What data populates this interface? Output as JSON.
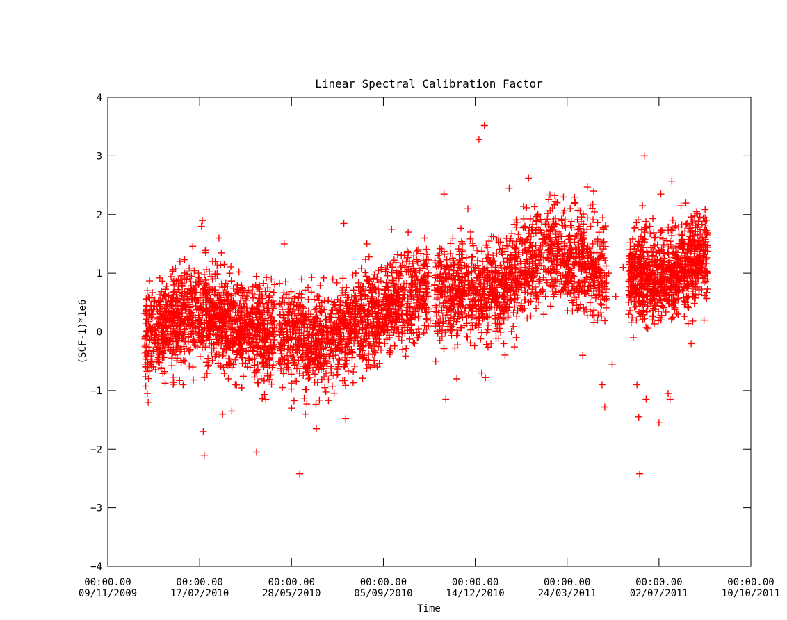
{
  "chart_data": {
    "type": "scatter",
    "title": "Linear Spectral Calibration Factor",
    "xlabel": "Time",
    "ylabel": "(SCF-1)*1e6",
    "ylim": [
      -4,
      4
    ],
    "xlim": [
      "2009-11-09",
      "2011-10-10"
    ],
    "yticks": [
      -4,
      -3,
      -2,
      -1,
      0,
      1,
      2,
      3,
      4
    ],
    "xticks": [
      {
        "date": "2009-11-09",
        "time": "00:00.00",
        "label": "09/11/2009"
      },
      {
        "date": "2010-02-17",
        "time": "00:00.00",
        "label": "17/02/2010"
      },
      {
        "date": "2010-05-28",
        "time": "00:00.00",
        "label": "28/05/2010"
      },
      {
        "date": "2010-09-05",
        "time": "00:00.00",
        "label": "05/09/2010"
      },
      {
        "date": "2010-12-14",
        "time": "00:00.00",
        "label": "14/12/2010"
      },
      {
        "date": "2011-03-24",
        "time": "00:00.00",
        "label": "24/03/2011"
      },
      {
        "date": "2011-07-02",
        "time": "00:00.00",
        "label": "02/07/2011"
      },
      {
        "date": "2011-10-10",
        "time": "00:00.00",
        "label": "10/10/2011"
      }
    ],
    "marker": "+",
    "grid": false,
    "series": [
      {
        "color": "#ff0000",
        "points": [
          [
            "2009-12-20",
            -0.35
          ],
          [
            "2009-12-22",
            -1.05
          ],
          [
            "2009-12-23",
            -1.2
          ],
          [
            "2009-12-25",
            0.1
          ],
          [
            "2009-12-28",
            0.3
          ],
          [
            "2010-01-03",
            0.5
          ],
          [
            "2010-01-08",
            0.0
          ],
          [
            "2010-01-12",
            0.2
          ],
          [
            "2010-01-16",
            -0.3
          ],
          [
            "2010-01-20",
            0.8
          ],
          [
            "2010-01-25",
            0.3
          ],
          [
            "2010-01-30",
            -0.9
          ],
          [
            "2010-02-04",
            0.6
          ],
          [
            "2010-02-08",
            0.95
          ],
          [
            "2010-02-12",
            0.1
          ],
          [
            "2010-02-17",
            0.4
          ],
          [
            "2010-02-19",
            1.8
          ],
          [
            "2010-02-20",
            1.9
          ],
          [
            "2010-02-21",
            -1.7
          ],
          [
            "2010-02-22",
            -2.1
          ],
          [
            "2010-02-24",
            1.4
          ],
          [
            "2010-02-26",
            0.7
          ],
          [
            "2010-03-02",
            -0.2
          ],
          [
            "2010-03-06",
            1.2
          ],
          [
            "2010-03-10",
            1.6
          ],
          [
            "2010-03-14",
            -1.4
          ],
          [
            "2010-03-18",
            0.3
          ],
          [
            "2010-03-24",
            -1.35
          ],
          [
            "2010-03-30",
            0.8
          ],
          [
            "2010-04-05",
            0.2
          ],
          [
            "2010-04-10",
            -0.6
          ],
          [
            "2010-04-15",
            0.1
          ],
          [
            "2010-04-20",
            -2.05
          ],
          [
            "2010-04-25",
            -0.8
          ],
          [
            "2010-04-30",
            -1.15
          ],
          [
            "2010-05-06",
            0.9
          ],
          [
            "2010-05-12",
            0.05
          ],
          [
            "2010-05-16",
            -0.5
          ],
          [
            "2010-05-20",
            1.5
          ],
          [
            "2010-05-24",
            -0.3
          ],
          [
            "2010-05-28",
            -1.3
          ],
          [
            "2010-06-01",
            0.6
          ],
          [
            "2010-06-04",
            -0.1
          ],
          [
            "2010-06-06",
            -2.42
          ],
          [
            "2010-06-08",
            0.9
          ],
          [
            "2010-06-12",
            -1.4
          ],
          [
            "2010-06-18",
            0.3
          ],
          [
            "2010-06-24",
            -1.65
          ],
          [
            "2010-06-30",
            0.5
          ],
          [
            "2010-07-06",
            -0.2
          ],
          [
            "2010-07-12",
            0.9
          ],
          [
            "2010-07-18",
            0.1
          ],
          [
            "2010-07-24",
            1.85
          ],
          [
            "2010-07-26",
            -1.48
          ],
          [
            "2010-07-30",
            0.4
          ],
          [
            "2010-08-06",
            1.0
          ],
          [
            "2010-08-12",
            0.2
          ],
          [
            "2010-08-18",
            1.5
          ],
          [
            "2010-08-22",
            -0.6
          ],
          [
            "2010-08-28",
            0.7
          ],
          [
            "2010-09-03",
            1.1
          ],
          [
            "2010-09-08",
            0.3
          ],
          [
            "2010-09-14",
            1.75
          ],
          [
            "2010-09-20",
            0.6
          ],
          [
            "2010-09-26",
            -0.3
          ],
          [
            "2010-10-02",
            1.7
          ],
          [
            "2010-10-06",
            0.8
          ],
          [
            "2010-10-20",
            1.6
          ],
          [
            "2010-10-26",
            0.2
          ],
          [
            "2010-11-01",
            -0.5
          ],
          [
            "2010-11-06",
            1.2
          ],
          [
            "2010-11-10",
            2.35
          ],
          [
            "2010-11-12",
            -1.15
          ],
          [
            "2010-11-18",
            0.4
          ],
          [
            "2010-11-24",
            -0.8
          ],
          [
            "2010-11-30",
            1.5
          ],
          [
            "2010-12-06",
            2.1
          ],
          [
            "2010-12-14",
            0.7
          ],
          [
            "2010-12-18",
            3.28
          ],
          [
            "2010-12-21",
            -0.7
          ],
          [
            "2010-12-24",
            3.52
          ],
          [
            "2010-12-25",
            -0.78
          ],
          [
            "2011-01-02",
            0.9
          ],
          [
            "2011-01-08",
            1.6
          ],
          [
            "2011-01-14",
            -0.2
          ],
          [
            "2011-01-20",
            2.45
          ],
          [
            "2011-01-26",
            1.1
          ],
          [
            "2011-02-01",
            0.4
          ],
          [
            "2011-02-06",
            1.8
          ],
          [
            "2011-02-10",
            2.62
          ],
          [
            "2011-02-16",
            1.3
          ],
          [
            "2011-02-22",
            0.9
          ],
          [
            "2011-03-01",
            1.5
          ],
          [
            "2011-03-08",
            2.1
          ],
          [
            "2011-03-14",
            1.0
          ],
          [
            "2011-03-20",
            2.3
          ],
          [
            "2011-03-24",
            1.2
          ],
          [
            "2011-03-30",
            0.5
          ],
          [
            "2011-04-05",
            1.6
          ],
          [
            "2011-04-10",
            -0.4
          ],
          [
            "2011-04-15",
            2.47
          ],
          [
            "2011-04-18",
            1.1
          ],
          [
            "2011-04-22",
            2.4
          ],
          [
            "2011-04-26",
            0.2
          ],
          [
            "2011-05-01",
            -0.9
          ],
          [
            "2011-05-04",
            -1.28
          ],
          [
            "2011-05-08",
            1.0
          ],
          [
            "2011-05-12",
            -0.55
          ],
          [
            "2011-05-16",
            0.6
          ],
          [
            "2011-05-24",
            1.1
          ],
          [
            "2011-05-30",
            0.3
          ],
          [
            "2011-06-04",
            -0.1
          ],
          [
            "2011-06-08",
            -0.9
          ],
          [
            "2011-06-10",
            -1.45
          ],
          [
            "2011-06-11",
            -2.42
          ],
          [
            "2011-06-14",
            2.15
          ],
          [
            "2011-06-16",
            3.0
          ],
          [
            "2011-06-18",
            -1.15
          ],
          [
            "2011-06-22",
            1.8
          ],
          [
            "2011-06-26",
            0.4
          ],
          [
            "2011-07-02",
            -1.55
          ],
          [
            "2011-07-04",
            2.35
          ],
          [
            "2011-07-08",
            0.9
          ],
          [
            "2011-07-12",
            -1.05
          ],
          [
            "2011-07-14",
            -1.15
          ],
          [
            "2011-07-16",
            2.57
          ],
          [
            "2011-07-20",
            1.3
          ],
          [
            "2011-07-26",
            2.15
          ],
          [
            "2011-08-01",
            0.6
          ],
          [
            "2011-08-06",
            -0.2
          ],
          [
            "2011-08-12",
            2.05
          ],
          [
            "2011-08-16",
            1.5
          ],
          [
            "2011-08-20",
            0.2
          ],
          [
            "2011-08-22",
            1.7
          ],
          [
            "2011-08-24",
            1.0
          ]
        ]
      }
    ],
    "clusters": [
      {
        "start": "2009-12-19",
        "end": "2010-05-10",
        "trend": [
          [
            0,
            -0.1
          ],
          [
            0.35,
            0.35
          ],
          [
            1,
            -0.05
          ]
        ],
        "spread": 0.45,
        "count": 1300
      },
      {
        "start": "2010-05-14",
        "end": "2010-10-24",
        "trend": [
          [
            0,
            -0.05
          ],
          [
            0.3,
            -0.15
          ],
          [
            1,
            0.75
          ]
        ],
        "spread": 0.42,
        "count": 1300
      },
      {
        "start": "2010-10-30",
        "end": "2011-05-06",
        "trend": [
          [
            0,
            0.6
          ],
          [
            0.4,
            0.75
          ],
          [
            0.65,
            1.4
          ],
          [
            1,
            1.0
          ]
        ],
        "spread": 0.45,
        "count": 1400
      },
      {
        "start": "2011-05-30",
        "end": "2011-08-24",
        "trend": [
          [
            0,
            1.0
          ],
          [
            0.35,
            0.85
          ],
          [
            1,
            1.35
          ]
        ],
        "spread": 0.4,
        "count": 900
      }
    ]
  }
}
